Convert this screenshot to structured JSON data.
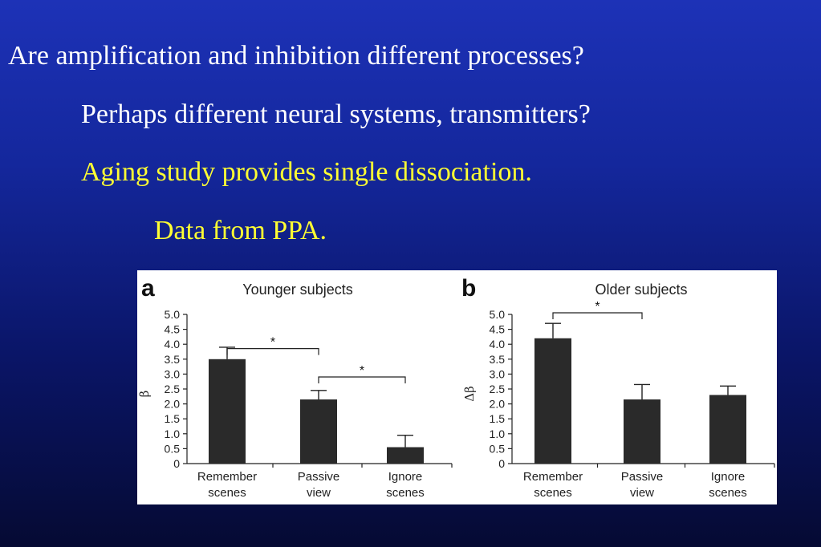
{
  "slide": {
    "lines": [
      "Are amplification and inhibition different processes?",
      "Perhaps different neural systems, transmitters?",
      "Aging study provides single dissociation.",
      "Data from PPA."
    ]
  },
  "colors": {
    "text_white": "#ffffff",
    "text_yellow": "#ffff33",
    "bar_fill": "#2a2a2a",
    "figure_bg": "#ffffff"
  },
  "chart_data": [
    {
      "type": "bar",
      "panel": "a",
      "title": "Younger subjects",
      "ylabel": "β",
      "ylim": [
        0,
        5.0
      ],
      "yticks": [
        "0",
        "0.5",
        "1.0",
        "1.5",
        "2.0",
        "2.5",
        "3.0",
        "3.5",
        "4.0",
        "4.5",
        "5.0"
      ],
      "categories": [
        [
          "Remember",
          "scenes"
        ],
        [
          "Passive",
          "view"
        ],
        [
          "Ignore",
          "scenes"
        ]
      ],
      "values": [
        3.5,
        2.15,
        0.55
      ],
      "errors": [
        0.4,
        0.3,
        0.4
      ],
      "significance": [
        {
          "from": 0,
          "to": 1,
          "level": 3.8,
          "label": "*"
        },
        {
          "from": 1,
          "to": 2,
          "level": 2.85,
          "label": "*"
        }
      ]
    },
    {
      "type": "bar",
      "panel": "b",
      "title": "Older subjects",
      "ylabel": "Δβ",
      "ylim": [
        0,
        5.0
      ],
      "yticks": [
        "0",
        "0.5",
        "1.0",
        "1.5",
        "2.0",
        "2.5",
        "3.0",
        "3.5",
        "4.0",
        "4.5",
        "5.0"
      ],
      "categories": [
        [
          "Remember",
          "scenes"
        ],
        [
          "Passive",
          "view"
        ],
        [
          "Ignore",
          "scenes"
        ]
      ],
      "values": [
        4.2,
        2.15,
        2.3
      ],
      "errors": [
        0.5,
        0.5,
        0.3
      ],
      "significance": [
        {
          "from": 0,
          "to": 1,
          "level": 5.0,
          "label": "*"
        }
      ]
    }
  ]
}
